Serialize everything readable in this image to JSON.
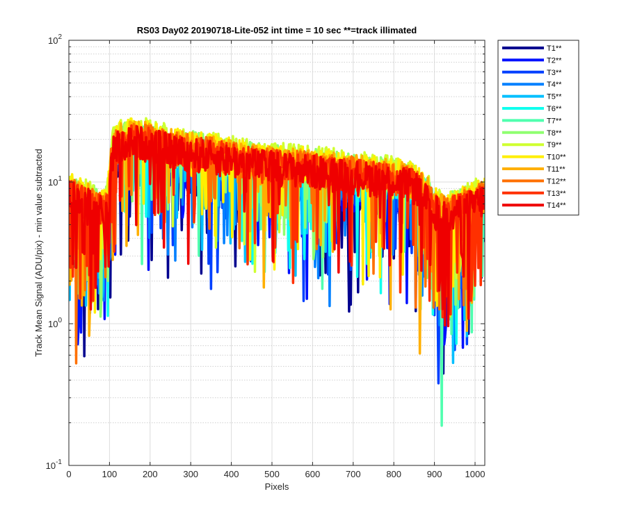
{
  "chart_data": {
    "type": "line",
    "title": "RS03 Day02 20190718-Lite-052 int time = 10 sec    **=track illimated",
    "xlabel": "Pixels",
    "ylabel": "Track Mean Signal (ADU/pix) - min value subtracted",
    "xlim": [
      0,
      1024
    ],
    "ylim": [
      0.1,
      100
    ],
    "yscale": "log",
    "x_ticks": [
      0,
      100,
      200,
      300,
      400,
      500,
      600,
      700,
      800,
      900,
      1000
    ],
    "x_tick_labels": [
      "0",
      "100",
      "200",
      "300",
      "400",
      "500",
      "600",
      "700",
      "800",
      "900",
      "1000"
    ],
    "y_ticks": [
      {
        "value": 0.1,
        "base": "10",
        "exp": "-1"
      },
      {
        "value": 1,
        "base": "10",
        "exp": "0"
      },
      {
        "value": 10,
        "base": "10",
        "exp": "1"
      },
      {
        "value": 100,
        "base": "10",
        "exp": "2"
      }
    ],
    "grid": true,
    "legend_position": "outside-top-right",
    "envelope": {
      "x": [
        0,
        20,
        40,
        60,
        80,
        95,
        105,
        110,
        130,
        160,
        200,
        250,
        300,
        350,
        400,
        450,
        500,
        550,
        600,
        650,
        700,
        750,
        800,
        850,
        880,
        900,
        930,
        960,
        1000,
        1024
      ],
      "y": [
        9,
        8.5,
        8,
        7.5,
        7,
        7.5,
        15,
        19,
        21,
        22,
        21,
        19,
        18,
        17,
        16,
        15,
        14.5,
        14,
        13.5,
        13,
        12.5,
        12,
        11.5,
        10.5,
        9,
        7,
        6.5,
        7,
        8,
        8.5
      ]
    },
    "series": [
      {
        "name": "T1**",
        "color": "#00008F",
        "scale": 0.62
      },
      {
        "name": "T2**",
        "color": "#0010FF",
        "scale": 0.68
      },
      {
        "name": "T3**",
        "color": "#0040FF",
        "scale": 0.74
      },
      {
        "name": "T4**",
        "color": "#0080FF",
        "scale": 0.8
      },
      {
        "name": "T5**",
        "color": "#00BFFF",
        "scale": 0.85
      },
      {
        "name": "T6**",
        "color": "#10FFEF",
        "scale": 0.9
      },
      {
        "name": "T7**",
        "color": "#50FFAF",
        "scale": 0.95
      },
      {
        "name": "T8**",
        "color": "#8FFF70",
        "scale": 1.0
      },
      {
        "name": "T9**",
        "color": "#CFFF30",
        "scale": 1.05
      },
      {
        "name": "T10**",
        "color": "#FFEF00",
        "scale": 1.02
      },
      {
        "name": "T11**",
        "color": "#FFAF00",
        "scale": 0.98
      },
      {
        "name": "T12**",
        "color": "#FF7000",
        "scale": 0.95
      },
      {
        "name": "T13**",
        "color": "#FF3000",
        "scale": 0.92
      },
      {
        "name": "T14**",
        "color": "#EF0000",
        "scale": 0.9
      }
    ]
  }
}
